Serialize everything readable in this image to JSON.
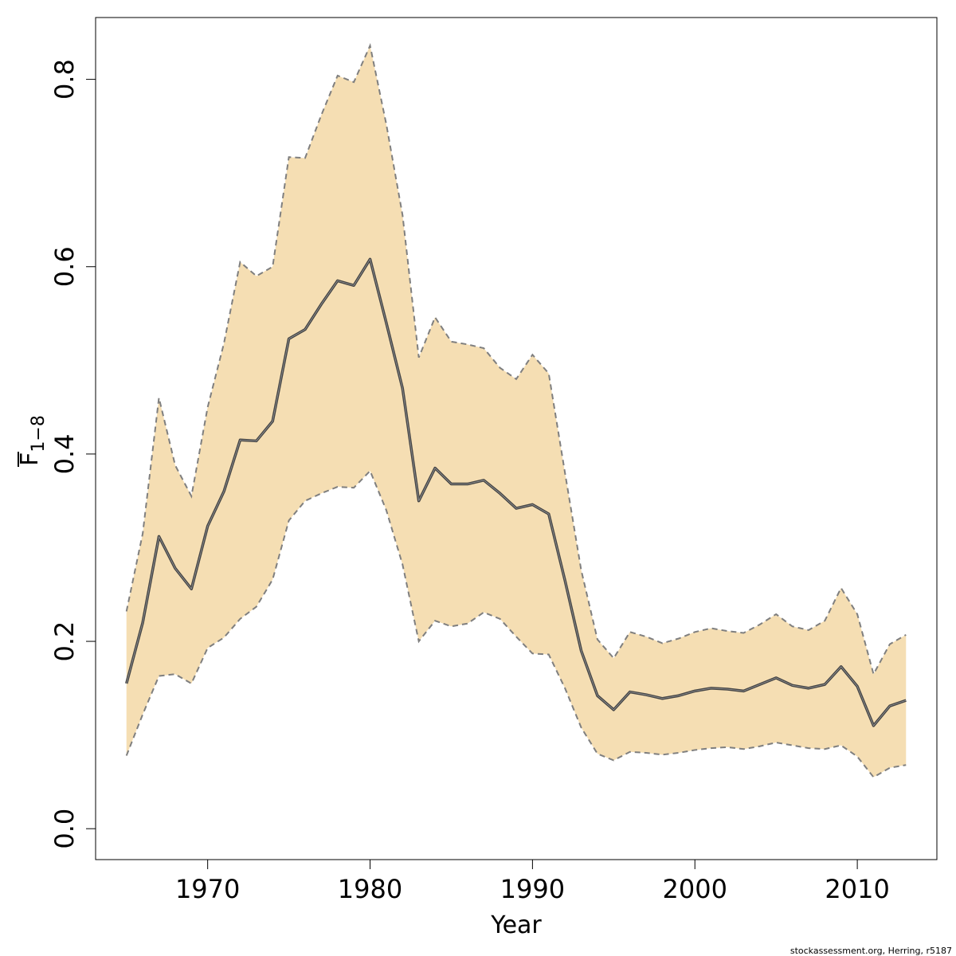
{
  "chart_data": {
    "type": "area",
    "xlabel": "Year",
    "ylabel": {
      "main": "F",
      "subscript": "1−8"
    },
    "credit": "stockassessment.org, Herring, r5187",
    "xlim": [
      1963.1,
      2014.9
    ],
    "ylim": [
      -0.033,
      0.866
    ],
    "x_ticks": [
      1970,
      1980,
      1990,
      2000,
      2010
    ],
    "y_ticks": [
      0.0,
      0.2,
      0.4,
      0.6,
      0.8
    ],
    "x_tick_labels": [
      "1970",
      "1980",
      "1990",
      "2000",
      "2010"
    ],
    "y_tick_labels": [
      "0.0",
      "0.2",
      "0.4",
      "0.6",
      "0.8"
    ],
    "colors": {
      "band": "#f5deb3",
      "estimate": "#444444",
      "bounds": "#7f7f7f"
    },
    "x": [
      1965,
      1966,
      1967,
      1968,
      1969,
      1970,
      1971,
      1972,
      1973,
      1974,
      1975,
      1976,
      1977,
      1978,
      1979,
      1980,
      1981,
      1982,
      1983,
      1984,
      1985,
      1986,
      1987,
      1988,
      1989,
      1990,
      1991,
      1992,
      1993,
      1994,
      1995,
      1996,
      1997,
      1998,
      1999,
      2000,
      2001,
      2002,
      2003,
      2004,
      2005,
      2006,
      2007,
      2008,
      2009,
      2010,
      2011,
      2012,
      2013
    ],
    "series": [
      {
        "role": "estimate",
        "values": [
          0.155,
          0.22,
          0.312,
          0.278,
          0.256,
          0.323,
          0.36,
          0.415,
          0.414,
          0.435,
          0.523,
          0.533,
          0.56,
          0.585,
          0.58,
          0.608,
          0.54,
          0.47,
          0.35,
          0.385,
          0.368,
          0.368,
          0.372,
          0.358,
          0.342,
          0.346,
          0.336,
          0.265,
          0.19,
          0.142,
          0.127,
          0.146,
          0.143,
          0.139,
          0.142,
          0.147,
          0.15,
          0.149,
          0.147,
          0.154,
          0.161,
          0.153,
          0.15,
          0.154,
          0.173,
          0.152,
          0.11,
          0.131,
          0.137
        ]
      },
      {
        "role": "upper",
        "values": [
          0.232,
          0.315,
          0.46,
          0.388,
          0.355,
          0.45,
          0.518,
          0.605,
          0.59,
          0.6,
          0.717,
          0.716,
          0.762,
          0.804,
          0.797,
          0.836,
          0.752,
          0.655,
          0.503,
          0.546,
          0.52,
          0.517,
          0.513,
          0.492,
          0.48,
          0.506,
          0.486,
          0.38,
          0.276,
          0.202,
          0.182,
          0.21,
          0.205,
          0.198,
          0.203,
          0.21,
          0.214,
          0.211,
          0.209,
          0.218,
          0.229,
          0.216,
          0.212,
          0.222,
          0.257,
          0.229,
          0.165,
          0.197,
          0.207
        ]
      },
      {
        "role": "lower",
        "values": [
          0.078,
          0.122,
          0.163,
          0.165,
          0.155,
          0.193,
          0.204,
          0.224,
          0.237,
          0.266,
          0.329,
          0.35,
          0.358,
          0.365,
          0.364,
          0.382,
          0.34,
          0.282,
          0.2,
          0.222,
          0.216,
          0.219,
          0.231,
          0.224,
          0.205,
          0.187,
          0.186,
          0.15,
          0.108,
          0.08,
          0.073,
          0.082,
          0.081,
          0.079,
          0.081,
          0.084,
          0.086,
          0.087,
          0.085,
          0.088,
          0.092,
          0.089,
          0.086,
          0.085,
          0.089,
          0.077,
          0.055,
          0.065,
          0.068
        ]
      }
    ]
  }
}
